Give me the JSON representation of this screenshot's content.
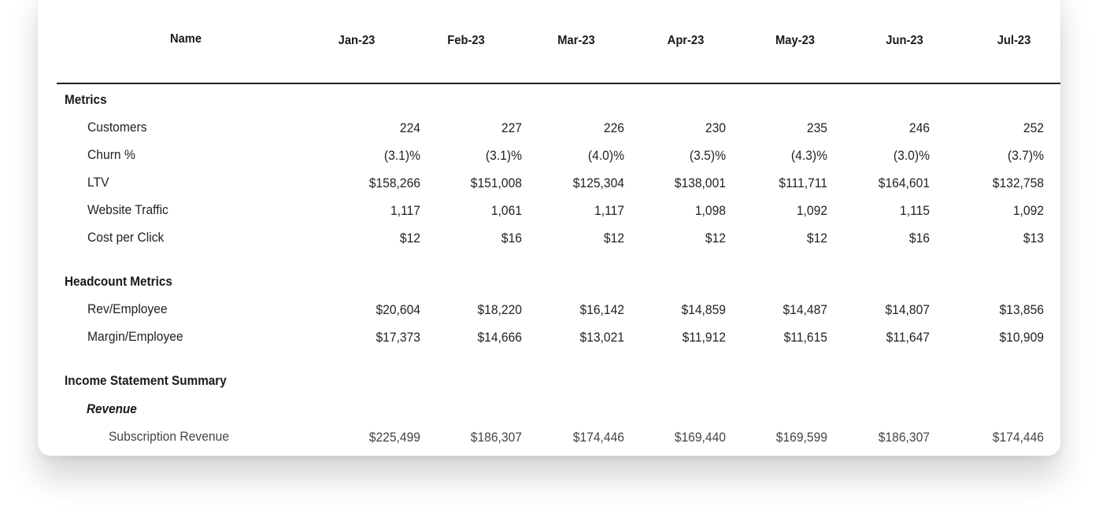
{
  "table": {
    "name_header": "Name",
    "columns": [
      "Jan-23",
      "Feb-23",
      "Mar-23",
      "Apr-23",
      "May-23",
      "Jun-23",
      "Jul-23"
    ],
    "rows": [
      {
        "type": "section",
        "label": "Metrics"
      },
      {
        "type": "item",
        "label": "Customers",
        "values": [
          "224",
          "227",
          "226",
          "230",
          "235",
          "246",
          "252"
        ]
      },
      {
        "type": "item",
        "label": "Churn %",
        "values": [
          "(3.1)%",
          "(3.1)%",
          "(4.0)%",
          "(3.5)%",
          "(4.3)%",
          "(3.0)%",
          "(3.7)%"
        ]
      },
      {
        "type": "item",
        "label": "LTV",
        "values": [
          "$158,266",
          "$151,008",
          "$125,304",
          "$138,001",
          "$111,711",
          "$164,601",
          "$132,758"
        ]
      },
      {
        "type": "item",
        "label": "Website Traffic",
        "values": [
          "1,117",
          "1,061",
          "1,117",
          "1,098",
          "1,092",
          "1,115",
          "1,092"
        ]
      },
      {
        "type": "item",
        "label": "Cost per Click",
        "values": [
          "$12",
          "$16",
          "$12",
          "$12",
          "$12",
          "$16",
          "$13"
        ]
      },
      {
        "type": "section",
        "label": "Headcount Metrics"
      },
      {
        "type": "item",
        "label": "Rev/Employee",
        "values": [
          "$20,604",
          "$18,220",
          "$16,142",
          "$14,859",
          "$14,487",
          "$14,807",
          "$13,856"
        ]
      },
      {
        "type": "item",
        "label": "Margin/Employee",
        "values": [
          "$17,373",
          "$14,666",
          "$13,021",
          "$11,912",
          "$11,615",
          "$11,647",
          "$10,909"
        ]
      },
      {
        "type": "section",
        "label": "Income Statement Summary"
      },
      {
        "type": "group",
        "label": "Revenue"
      },
      {
        "type": "sub",
        "label": "Subscription Revenue",
        "values": [
          "$225,499",
          "$186,307",
          "$174,446",
          "$169,440",
          "$169,599",
          "$186,307",
          "$174,446"
        ]
      }
    ]
  }
}
